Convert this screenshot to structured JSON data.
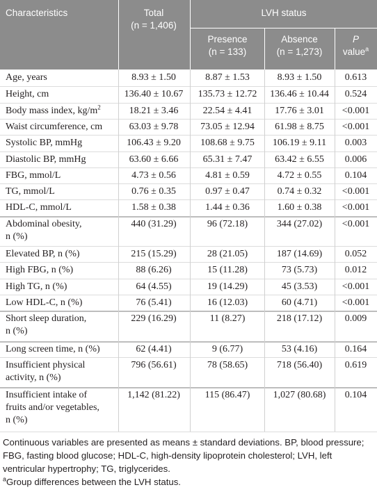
{
  "header": {
    "characteristics": "Characteristics",
    "total": "Total",
    "total_n": "(n = 1,406)",
    "lvh_status": "LVH status",
    "presence": "Presence",
    "presence_n": "(n = 133)",
    "absence": "Absence",
    "absence_n": "(n = 1,273)",
    "p": "P",
    "p_value": "value",
    "p_sup": "a"
  },
  "rows": [
    {
      "label": "Age, years",
      "total": "8.93 ± 1.50",
      "presence": "8.87 ± 1.53",
      "absence": "8.93 ± 1.50",
      "p": "0.613"
    },
    {
      "label": "Height, cm",
      "total": "136.40 ± 10.67",
      "presence": "135.73 ± 12.72",
      "absence": "136.46 ± 10.44",
      "p": "0.524"
    },
    {
      "label": "Body mass index, kg/m",
      "label_sup": "2",
      "total": "18.21 ± 3.46",
      "presence": "22.54 ± 4.41",
      "absence": "17.76 ± 3.01",
      "p": "<0.001"
    },
    {
      "label": "Waist circumference, cm",
      "total": "63.03 ± 9.78",
      "presence": "73.05 ± 12.94",
      "absence": "61.98 ± 8.75",
      "p": "<0.001"
    },
    {
      "label": "Systolic BP, mmHg",
      "total": "106.43 ± 9.20",
      "presence": "108.68 ± 9.75",
      "absence": "106.19 ± 9.11",
      "p": "0.003"
    },
    {
      "label": "Diastolic BP, mmHg",
      "total": "63.60 ± 6.66",
      "presence": "65.31 ± 7.47",
      "absence": "63.42 ± 6.55",
      "p": "0.006"
    },
    {
      "label": "FBG, mmol/L",
      "total": "4.73 ± 0.56",
      "presence": "4.81 ± 0.59",
      "absence": "4.72 ± 0.55",
      "p": "0.104"
    },
    {
      "label": "TG, mmol/L",
      "total": "0.76 ± 0.35",
      "presence": "0.97 ± 0.47",
      "absence": "0.74 ± 0.32",
      "p": "<0.001"
    },
    {
      "label": "HDL-C, mmol/L",
      "total": "1.58 ± 0.38",
      "presence": "1.44 ± 0.36",
      "absence": "1.60 ± 0.38",
      "p": "<0.001"
    },
    {
      "label": "Abdominal obesity,",
      "label2": "n (%)",
      "total": "440 (31.29)",
      "presence": "96 (72.18)",
      "absence": "344 (27.02)",
      "p": "<0.001"
    },
    {
      "label": "Elevated BP, n (%)",
      "total": "215 (15.29)",
      "presence": "28 (21.05)",
      "absence": "187 (14.69)",
      "p": "0.052"
    },
    {
      "label": "High FBG, n (%)",
      "total": "88 (6.26)",
      "presence": "15 (11.28)",
      "absence": "73 (5.73)",
      "p": "0.012"
    },
    {
      "label": "High TG, n (%)",
      "total": "64 (4.55)",
      "presence": "19 (14.29)",
      "absence": "45 (3.53)",
      "p": "<0.001"
    },
    {
      "label": "Low HDL-C, n (%)",
      "total": "76 (5.41)",
      "presence": "16 (12.03)",
      "absence": "60 (4.71)",
      "p": "<0.001"
    },
    {
      "label": "Short sleep duration,",
      "label2": "n (%)",
      "total": "229 (16.29)",
      "presence": "11 (8.27)",
      "absence": "218 (17.12)",
      "p": "0.009"
    },
    {
      "label": "Long screen time, n (%)",
      "total": "62 (4.41)",
      "presence": "9 (6.77)",
      "absence": "53 (4.16)",
      "p": "0.164"
    },
    {
      "label": "Insufficient physical",
      "label2": "activity, n (%)",
      "total": "796 (56.61)",
      "presence": "78 (58.65)",
      "absence": "718 (56.40)",
      "p": "0.619"
    },
    {
      "label": "Insufficient intake of",
      "label2": "fruits and/or vegetables,",
      "label3": "n (%)",
      "total": "1,142 (81.22)",
      "presence": "115 (86.47)",
      "absence": "1,027 (80.68)",
      "p": "0.104"
    }
  ],
  "footnotes": {
    "abbrev": "Continuous variables are presented as means ± standard deviations. BP, blood pressure; FBG, fasting blood glucose; HDL-C, high-density lipoprotein cholesterol; LVH, left ventricular hypertrophy; TG, triglycerides.",
    "a_sup": "a",
    "a_text": "Group differences between the LVH status."
  }
}
